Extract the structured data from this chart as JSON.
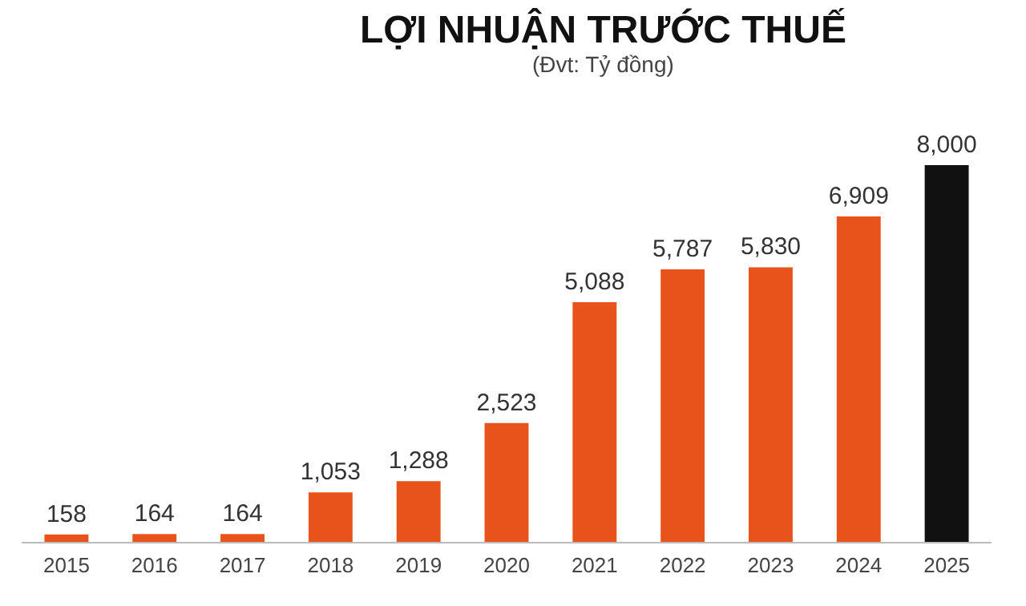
{
  "chart_data": {
    "type": "bar",
    "title": "LỢI NHUẬN TRƯỚC THUẾ",
    "subtitle": "(Đvt: Tỷ đồng)",
    "categories": [
      "2015",
      "2016",
      "2017",
      "2018",
      "2019",
      "2020",
      "2021",
      "2022",
      "2023",
      "2024",
      "2025"
    ],
    "values": [
      158,
      164,
      164,
      1053,
      1288,
      2523,
      5088,
      5787,
      5830,
      6909,
      8000
    ],
    "colors": [
      "#e8531c",
      "#e8531c",
      "#e8531c",
      "#e8531c",
      "#e8531c",
      "#e8531c",
      "#e8531c",
      "#e8531c",
      "#e8531c",
      "#e8531c",
      "#111111"
    ],
    "value_labels": [
      "158",
      "164",
      "164",
      "1,053",
      "1,288",
      "2,523",
      "5,088",
      "5,787",
      "5,830",
      "6,909",
      "8,000"
    ],
    "grid": false
  }
}
